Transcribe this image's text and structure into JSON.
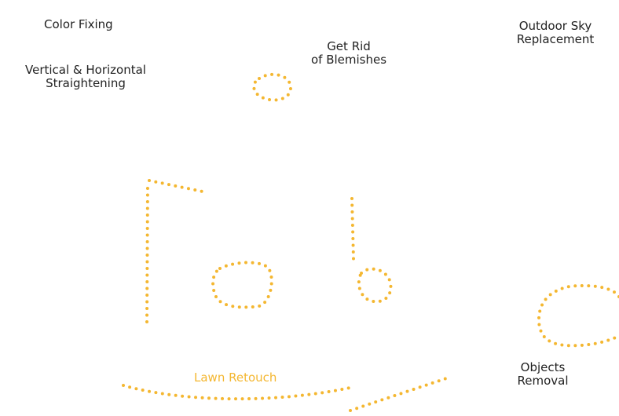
{
  "labels": {
    "color_fixing": "Color Fixing",
    "straightening_1": "Vertical & Horizontal",
    "straightening_2": "Straightening",
    "blemishes_1": "Get Rid",
    "blemishes_2": "of Blemishes",
    "sky_1": "Outdoor Sky",
    "sky_2": "Replacement",
    "lawn": "Lawn Retouch",
    "objects_1": "Objects",
    "objects_2": "Removal"
  },
  "colors": {
    "accent": "#f4b731",
    "text": "#222222"
  }
}
